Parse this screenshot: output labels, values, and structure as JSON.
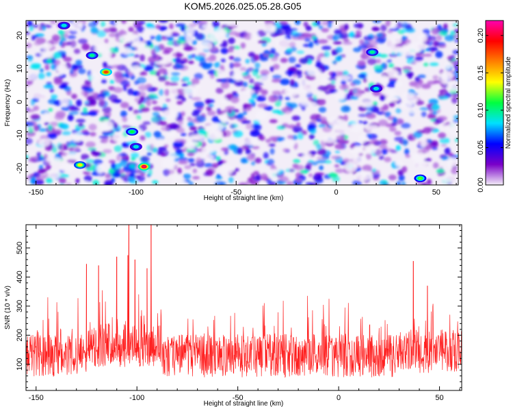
{
  "title": "KOM5.2026.025.05.28.G05",
  "chart_data": [
    {
      "type": "heatmap",
      "xlabel": "Height of straight line (km)",
      "ylabel": "Frequency (Hz)",
      "xlim": [
        -155,
        61
      ],
      "ylim": [
        -25,
        24.5
      ],
      "x_ticks": [
        -150,
        -100,
        -50,
        0,
        50
      ],
      "y_ticks": [
        -20,
        -10,
        0,
        10,
        20
      ],
      "colorbar": {
        "label": "Normalized spectral amplitude",
        "range": [
          0,
          0.22
        ],
        "ticks": [
          "0.00",
          "0.05",
          "0.10",
          "0.15",
          "0.20"
        ],
        "colormap": [
          "#f3eef8",
          "#7a00c8",
          "#0000ff",
          "#00e0ff",
          "#00ff40",
          "#ffff00",
          "#ff8000",
          "#ff0000",
          "#ff00b0"
        ]
      },
      "hotspots": [
        {
          "x": -96,
          "y": -19.5,
          "value": 0.21
        },
        {
          "x": -115,
          "y": 9,
          "value": 0.18
        },
        {
          "x": -128,
          "y": -19,
          "value": 0.14
        },
        {
          "x": 42,
          "y": -23,
          "value": 0.12
        },
        {
          "x": -102,
          "y": -9,
          "value": 0.11
        },
        {
          "x": -122,
          "y": 14,
          "value": 0.1
        },
        {
          "x": 18,
          "y": 15,
          "value": 0.1
        },
        {
          "x": -136,
          "y": 23,
          "value": 0.09
        },
        {
          "x": 20,
          "y": 4,
          "value": 0.09
        },
        {
          "x": -100,
          "y": -13.5,
          "value": 0.09
        }
      ]
    },
    {
      "type": "line",
      "xlabel": "Height of straight line (km)",
      "ylabel": "SNR (10 * v/v)",
      "xlim": [
        -155,
        61
      ],
      "ylim": [
        10,
        580
      ],
      "x_ticks": [
        -150,
        -100,
        -50,
        0,
        50
      ],
      "y_ticks": [
        100,
        200,
        300,
        400,
        500
      ],
      "color": "#ff2020",
      "baseline_mean": 130,
      "peaks": [
        {
          "x": -104,
          "y": 580
        },
        {
          "x": -93,
          "y": 580
        },
        {
          "x": -104.5,
          "y": 475
        },
        {
          "x": -110,
          "y": 470
        },
        {
          "x": -101,
          "y": 460
        },
        {
          "x": -125,
          "y": 445
        },
        {
          "x": -119,
          "y": 440
        },
        {
          "x": 37,
          "y": 455
        },
        {
          "x": -95,
          "y": 430
        },
        {
          "x": 44,
          "y": 370
        }
      ]
    }
  ]
}
